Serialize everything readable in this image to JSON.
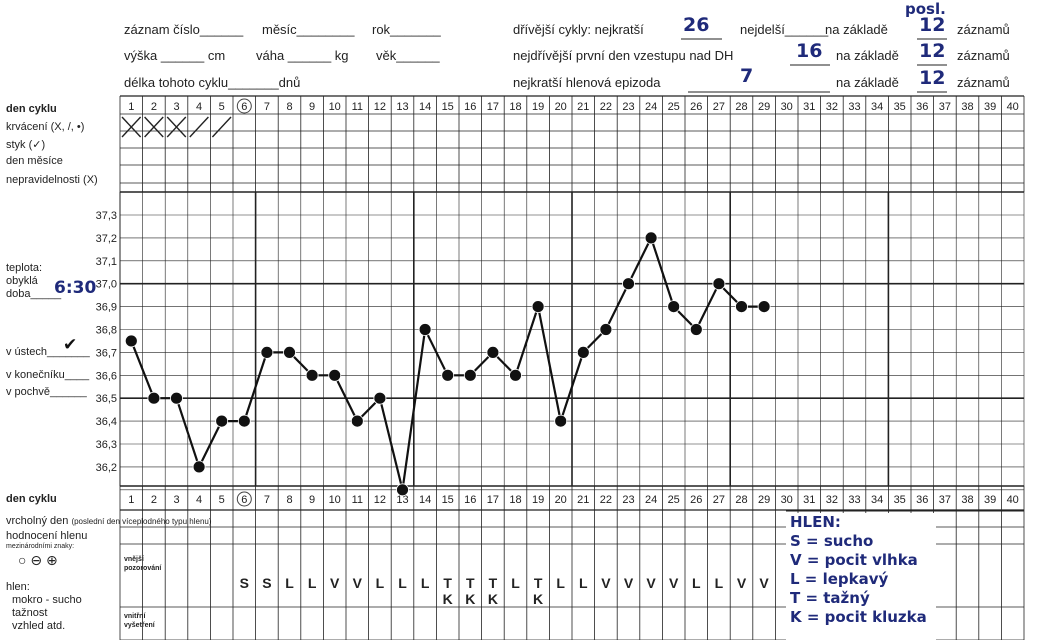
{
  "header": {
    "record_no": "záznam číslo______",
    "month": "měsíc________",
    "year": "rok_______",
    "height": "výška ______ cm",
    "weight": "váha ______ kg",
    "age": "věk______",
    "cycle_length": "délka tohoto cyklu_______dnů",
    "prev_cycles": "dřívější cykly: nejkratší",
    "prev_shortest": "26",
    "longest": "nejdelší______",
    "based_on_1": "na základě",
    "posl": "posl.",
    "n1": "12",
    "records_1": "záznamů",
    "earliest_first_day": "nejdřívější první den vzestupu nad DH",
    "earliest_val": "16",
    "based_on_2": "na základě",
    "n2": "12",
    "records_2": "záznamů",
    "shortest_mucus": "nejkratší hlenová epizoda",
    "mucus_val": "7",
    "based_on_3": "na základě",
    "n3": "12",
    "records_3": "záznamů"
  },
  "left_labels": {
    "cycle_day": "den cyklu",
    "bleeding": "krvácení (X, /, •)",
    "intercourse": "styk (✓)",
    "month_day": "den měsíce",
    "irregularities": "nepravidelnosti (X)",
    "temperature": "teplota:",
    "usual": "obyklá",
    "time": "doba_____",
    "time_val": "6:30",
    "mouth": "v ústech_______",
    "mouth_check": "✔",
    "rectum": "v konečníku____",
    "vagina": "v pochvě______",
    "cycle_day_2": "den cyklu",
    "peak_day": "vrcholný den",
    "peak_day_note": "(poslední den víceplodného typu hlenu)",
    "mucus_rating": "hodnocení hlenu",
    "intl_signs": "mezinárodními znaky:",
    "signs": "○ ⊖ ⊕",
    "mucus": "hlen:",
    "wet_dry": "mokro - sucho",
    "stretch": "tažnost",
    "appearance": "vzhled atd.",
    "external": "vnější pozorování",
    "internal": "vnitřní vyšetření"
  },
  "days": [
    "1",
    "2",
    "3",
    "4",
    "5",
    "6",
    "7",
    "8",
    "9",
    "10",
    "11",
    "12",
    "13",
    "14",
    "15",
    "16",
    "17",
    "18",
    "19",
    "20",
    "21",
    "22",
    "23",
    "24",
    "25",
    "26",
    "27",
    "28",
    "29",
    "30",
    "31",
    "32",
    "33",
    "34",
    "35",
    "36",
    "37",
    "38",
    "39",
    "40"
  ],
  "bleeding_marks": [
    "X",
    "X",
    "X",
    "/",
    "/",
    "",
    "",
    "",
    "",
    "",
    "",
    "",
    "",
    "",
    "",
    "",
    "",
    "",
    "",
    "",
    "",
    "",
    "",
    "",
    "",
    "",
    "",
    "",
    "",
    "",
    "",
    "",
    "",
    "",
    "",
    "",
    "",
    "",
    "",
    ""
  ],
  "temp_axis": [
    "37,3",
    "37,2",
    "37,1",
    "37,0",
    "36,9",
    "36,8",
    "36,7",
    "36,6",
    "36,5",
    "36,4",
    "36,3",
    "36,2"
  ],
  "chart_data": {
    "type": "line",
    "x": [
      1,
      2,
      3,
      4,
      5,
      6,
      7,
      8,
      9,
      10,
      11,
      12,
      13,
      14,
      15,
      16,
      17,
      18,
      19,
      20,
      21,
      22,
      23,
      24,
      25,
      26,
      27,
      28,
      29
    ],
    "values": [
      36.75,
      36.5,
      36.5,
      36.2,
      36.4,
      36.4,
      36.7,
      36.7,
      36.6,
      36.6,
      36.4,
      36.5,
      36.1,
      36.8,
      36.6,
      36.6,
      36.7,
      36.6,
      36.9,
      36.4,
      36.7,
      36.8,
      37.0,
      37.2,
      36.9,
      36.8,
      37.0,
      36.9,
      36.9
    ],
    "ylim": [
      36.2,
      37.3
    ],
    "xlabel": "den cyklu",
    "ylabel": "teplota"
  },
  "mucus_row1": [
    "",
    "",
    "",
    "",
    "",
    "S",
    "S",
    "L",
    "L",
    "V",
    "V",
    "L",
    "L",
    "L",
    "T",
    "T",
    "T",
    "L",
    "T",
    "L",
    "L",
    "V",
    "V",
    "V",
    "V",
    "L",
    "L",
    "V",
    "V",
    "",
    "",
    "",
    "",
    "",
    "",
    "",
    "",
    "",
    "",
    ""
  ],
  "mucus_row2": [
    "",
    "",
    "",
    "",
    "",
    "",
    "",
    "",
    "",
    "",
    "",
    "",
    "",
    "",
    "K",
    "K",
    "K",
    "",
    "K",
    "",
    "",
    "",
    "",
    "",
    "",
    "",
    "",
    "",
    "",
    "",
    "",
    "",
    "",
    "",
    "",
    "",
    "",
    "",
    "",
    ""
  ],
  "legend": {
    "title": "HLEN:",
    "items": [
      "S = sucho",
      "V = pocit vlhka",
      "L = lepkavý",
      "T = tažný",
      "K = pocit kluzka"
    ]
  }
}
